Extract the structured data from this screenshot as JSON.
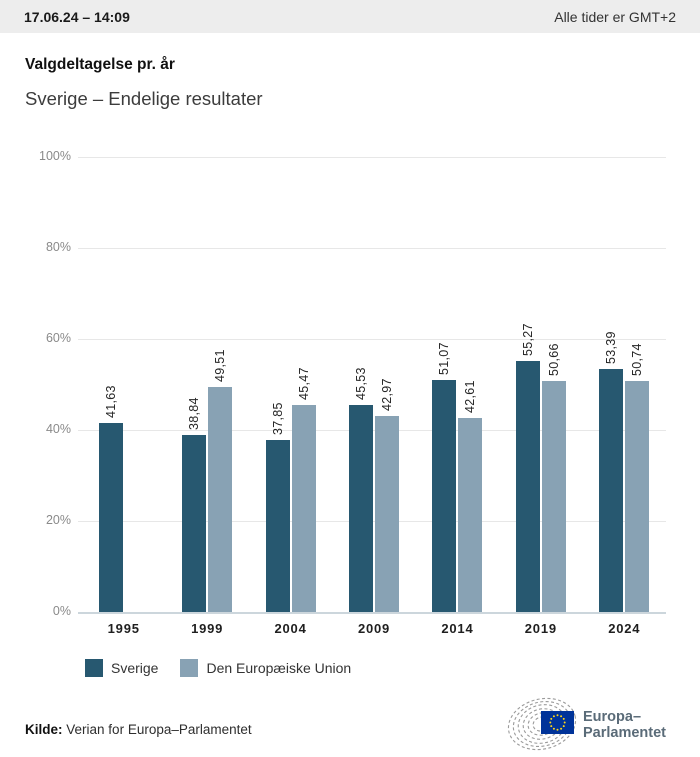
{
  "header": {
    "datetime": "17.06.24 – 14:09",
    "timezone_note": "Alle tider er GMT+2"
  },
  "title": "Valgdeltagelse pr. år",
  "subtitle": "Sverige – Endelige resultater",
  "chart_data": {
    "type": "bar",
    "title": "Valgdeltagelse pr. år",
    "subtitle": "Sverige – Endelige resultater",
    "categories": [
      "1995",
      "1999",
      "2004",
      "2009",
      "2014",
      "2019",
      "2024"
    ],
    "series": [
      {
        "name": "Sverige",
        "color": "#275870",
        "values": [
          41.63,
          38.84,
          37.85,
          45.53,
          51.07,
          55.27,
          53.39
        ]
      },
      {
        "name": "Den Europæiske Union",
        "color": "#88a2b4",
        "values": [
          null,
          49.51,
          45.47,
          42.97,
          42.61,
          50.66,
          50.74
        ]
      }
    ],
    "xlabel": "",
    "ylabel": "",
    "ylim": [
      0,
      100
    ],
    "yticks_percent": [
      0,
      20,
      40,
      60,
      80,
      100
    ],
    "grid": true,
    "legend_position": "bottom-left",
    "value_label_style": "rotated-90-comma-decimal"
  },
  "footer": {
    "source_label": "Kilde:",
    "source_text": "Verian for Europa–Parlamentet",
    "logo_line1": "Europa–",
    "logo_line2": "Parlamentet"
  },
  "colors": {
    "header_bg": "#ededed",
    "grid": "#e7e7e7",
    "axis_line": "#ccd6dc",
    "tick_label": "#8a8a8a",
    "flag_blue": "#003399",
    "star_yellow": "#ffd617",
    "logo_gray": "#9b9b9b",
    "logo_text": "#5a6b78"
  }
}
